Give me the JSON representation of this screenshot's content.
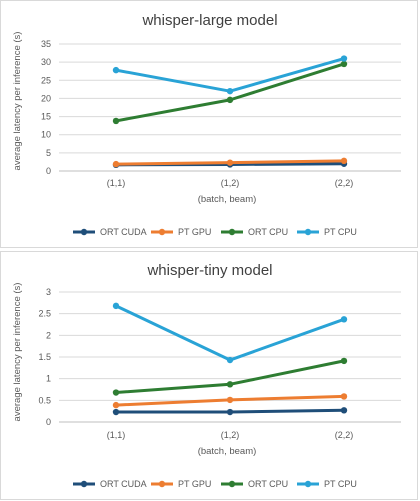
{
  "chart_data": [
    {
      "type": "line",
      "title": "whisper-large model",
      "xlabel": "(batch, beam)",
      "ylabel": "average latency per inference (s)",
      "categories": [
        "(1,1)",
        "(1,2)",
        "(2,2)"
      ],
      "ylim": [
        0,
        35
      ],
      "yticks": [
        "0",
        "5",
        "10",
        "15",
        "20",
        "25",
        "30",
        "35"
      ],
      "grid": true,
      "legend_position": "bottom",
      "series": [
        {
          "name": "ORT CUDA",
          "color": "#1f4e79",
          "values": [
            1.7,
            1.8,
            2.0
          ]
        },
        {
          "name": "PT GPU",
          "color": "#ed7d31",
          "values": [
            1.9,
            2.3,
            2.8
          ]
        },
        {
          "name": "ORT CPU",
          "color": "#2e7d32",
          "values": [
            13.8,
            19.6,
            29.5
          ]
        },
        {
          "name": "PT CPU",
          "color": "#29a3d6",
          "values": [
            27.8,
            22.0,
            31.0
          ]
        }
      ]
    },
    {
      "type": "line",
      "title": "whisper-tiny model",
      "xlabel": "(batch, beam)",
      "ylabel": "average latency per inference (s)",
      "categories": [
        "(1,1)",
        "(1,2)",
        "(2,2)"
      ],
      "ylim": [
        0,
        3
      ],
      "yticks": [
        "0",
        "0.5",
        "1",
        "1.5",
        "2",
        "2.5",
        "3"
      ],
      "grid": true,
      "legend_position": "bottom",
      "series": [
        {
          "name": "ORT CUDA",
          "color": "#1f4e79",
          "values": [
            0.23,
            0.23,
            0.27
          ]
        },
        {
          "name": "PT GPU",
          "color": "#ed7d31",
          "values": [
            0.39,
            0.51,
            0.59
          ]
        },
        {
          "name": "ORT CPU",
          "color": "#2e7d32",
          "values": [
            0.68,
            0.87,
            1.41
          ]
        },
        {
          "name": "PT CPU",
          "color": "#29a3d6",
          "values": [
            2.68,
            1.43,
            2.37
          ]
        }
      ]
    }
  ]
}
